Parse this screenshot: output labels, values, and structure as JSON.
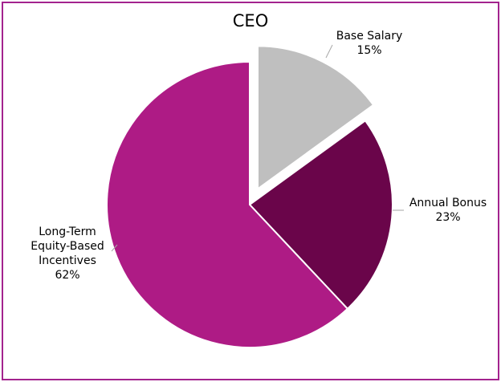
{
  "chart_data": {
    "type": "pie",
    "title": "CEO",
    "slices": [
      {
        "name": "Base Salary",
        "value": 15,
        "value_label": "15%",
        "color": "#bfbfbf",
        "exploded": true,
        "label_lines": [
          "Base Salary"
        ]
      },
      {
        "name": "Annual Bonus",
        "value": 23,
        "value_label": "23%",
        "color": "#6a054a",
        "exploded": false,
        "label_lines": [
          "Annual Bonus"
        ]
      },
      {
        "name": "Long-Term Equity-Based Incentives",
        "value": 62,
        "value_label": "62%",
        "color": "#ae1b85",
        "exploded": false,
        "label_lines": [
          "Long-Term",
          "Equity-Based",
          "Incentives"
        ]
      }
    ],
    "start_angle_deg": 0,
    "direction": "clockwise",
    "border_color": "#a3238e",
    "leader_color": "#a6a6a6"
  }
}
